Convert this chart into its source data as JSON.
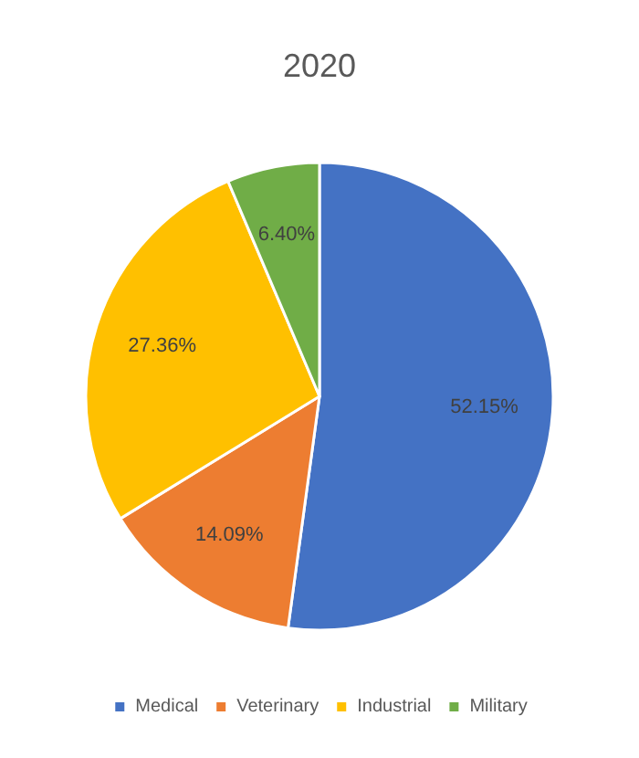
{
  "chart_data": {
    "type": "pie",
    "title": "2020",
    "categories": [
      "Medical",
      "Veterinary",
      "Industrial",
      "Military"
    ],
    "values": [
      52.15,
      14.09,
      27.36,
      6.4
    ],
    "value_labels": [
      "52.15%",
      "14.09%",
      "27.36%",
      "6.40%"
    ],
    "colors": [
      "#4472c4",
      "#ed7d31",
      "#ffc000",
      "#70ad47"
    ],
    "legend": "bottom"
  }
}
